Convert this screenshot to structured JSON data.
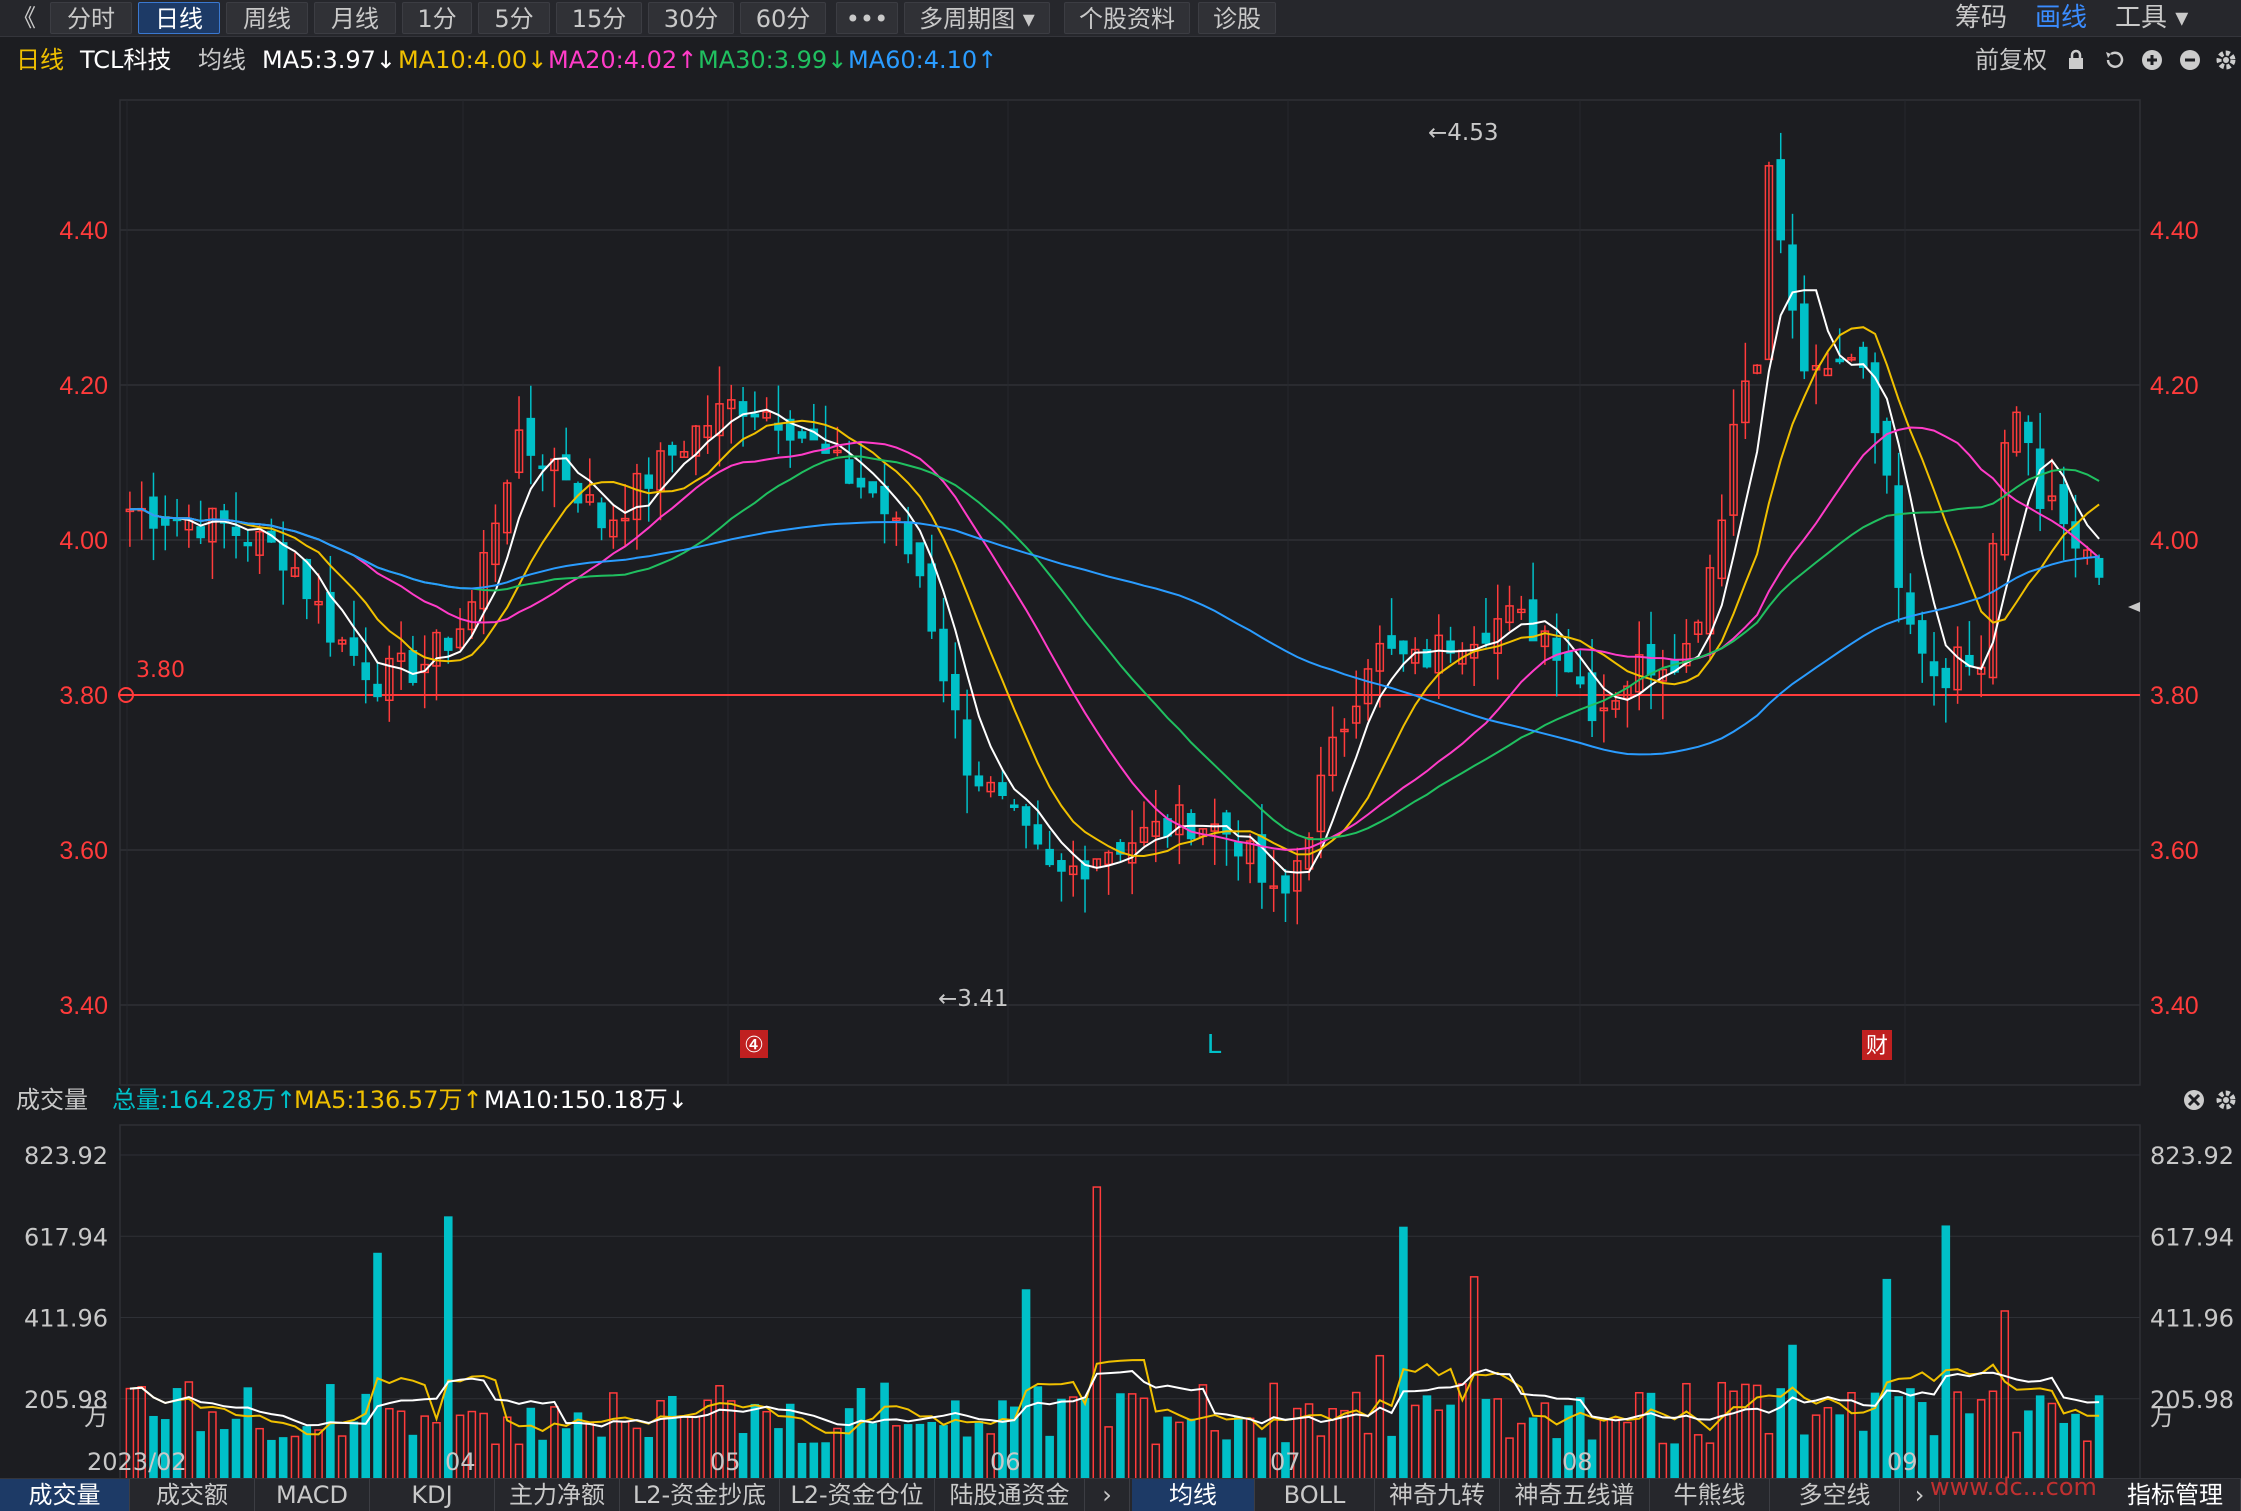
{
  "toolbar": {
    "back": "《",
    "tabs": [
      "分时",
      "日线",
      "周线",
      "月线",
      "1分",
      "5分",
      "15分",
      "30分",
      "60分",
      "•••",
      "多周期图 ▾",
      "个股资料",
      "诊股"
    ],
    "active_tab": "日线",
    "right": [
      "筹码",
      "画线",
      "工具 ▾"
    ]
  },
  "info": {
    "period": "日线",
    "stock": "TCL科技",
    "ma_label": "均线",
    "ma5": "MA5:3.97↓",
    "ma10": "MA10:4.00↓",
    "ma20": "MA20:4.02↑",
    "ma30": "MA30:3.99↓",
    "ma60": "MA60:4.10↑",
    "adjust": "前复权"
  },
  "colors": {
    "up": "#ff3b3b",
    "down": "#00c0c8",
    "ma5": "#ffffff",
    "ma10": "#f0c000",
    "ma20": "#ff3cc8",
    "ma30": "#20c060",
    "ma60": "#2a9cff",
    "grid": "#2e3036"
  },
  "price_axis": {
    "ticks": [
      "4.40",
      "4.20",
      "4.00",
      "3.80",
      "3.60",
      "3.40"
    ]
  },
  "markers": {
    "high": "←4.53",
    "low": "←3.41",
    "line_label": "3.80",
    "m1": "④",
    "m2": "L",
    "m3": "财"
  },
  "volume": {
    "label": "成交量",
    "total": "总量:164.28万↑",
    "ma5": "MA5:136.57万↑",
    "ma10": "MA10:150.18万↓",
    "ticks": [
      "823.92",
      "617.94",
      "411.96",
      "205.98"
    ],
    "unit": "万"
  },
  "x_axis": [
    "2023/02",
    "04",
    "05",
    "06",
    "07",
    "08",
    "09"
  ],
  "bottom_tabs_left": [
    "成交量",
    "成交额",
    "MACD",
    "KDJ",
    "主力净额",
    "L2-资金抄底",
    "L2-资金仓位",
    "陆股通资金"
  ],
  "bottom_tabs_right": [
    "均线",
    "BOLL",
    "神奇九转",
    "神奇五线谱",
    "牛熊线",
    "多空线"
  ],
  "bottom_right": "指标管理",
  "watermark": "www.dc...com"
}
